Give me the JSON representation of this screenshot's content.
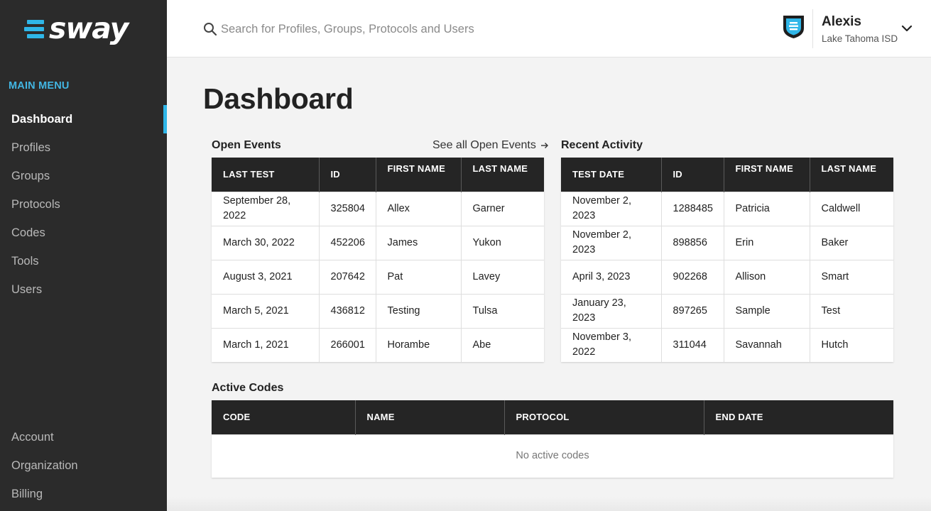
{
  "brand": {
    "name": "sway",
    "accent": "#2fb6e8"
  },
  "sidebar": {
    "menu_title": "MAIN MENU",
    "items": [
      {
        "label": "Dashboard",
        "active": true
      },
      {
        "label": "Profiles"
      },
      {
        "label": "Groups"
      },
      {
        "label": "Protocols"
      },
      {
        "label": "Codes"
      },
      {
        "label": "Tools"
      },
      {
        "label": "Users"
      }
    ],
    "bottom_items": [
      {
        "label": "Account"
      },
      {
        "label": "Organization"
      },
      {
        "label": "Billing"
      }
    ]
  },
  "header": {
    "search_placeholder": "Search for Profiles, Groups, Protocols and Users",
    "search_icon": "search-icon",
    "user": {
      "name": "Alexis",
      "org": "Lake Tahoma ISD",
      "icon": "shield-icon"
    }
  },
  "main": {
    "title": "Dashboard",
    "open_events": {
      "title": "Open Events",
      "see_all": "See all Open Events",
      "columns": [
        "LAST TEST",
        "ID",
        "FIRST NAME",
        "LAST NAME"
      ],
      "rows": [
        [
          "September 28, 2022",
          "325804",
          "Allex",
          "Garner"
        ],
        [
          "March 30, 2022",
          "452206",
          "James",
          "Yukon"
        ],
        [
          "August 3, 2021",
          "207642",
          "Pat",
          "Lavey"
        ],
        [
          "March 5, 2021",
          "436812",
          "Testing",
          "Tulsa"
        ],
        [
          "March 1, 2021",
          "266001",
          "Horambe",
          "Abe"
        ]
      ]
    },
    "recent_activity": {
      "title": "Recent Activity",
      "columns": [
        "TEST DATE",
        "ID",
        "FIRST NAME",
        "LAST NAME"
      ],
      "rows": [
        [
          "November 2, 2023",
          "1288485",
          "Patricia",
          "Caldwell"
        ],
        [
          "November 2, 2023",
          "898856",
          "Erin",
          "Baker"
        ],
        [
          "April 3, 2023",
          "902268",
          "Allison",
          "Smart"
        ],
        [
          "January 23, 2023",
          "897265",
          "Sample",
          "Test"
        ],
        [
          "November 3, 2022",
          "311044",
          "Savannah",
          "Hutch"
        ]
      ]
    },
    "active_codes": {
      "title": "Active Codes",
      "columns": [
        "CODE",
        "NAME",
        "PROTOCOL",
        "END DATE"
      ],
      "empty_text": "No active codes"
    }
  }
}
